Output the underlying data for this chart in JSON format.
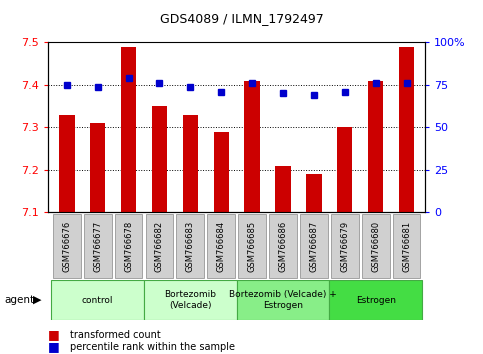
{
  "title": "GDS4089 / ILMN_1792497",
  "samples": [
    "GSM766676",
    "GSM766677",
    "GSM766678",
    "GSM766682",
    "GSM766683",
    "GSM766684",
    "GSM766685",
    "GSM766686",
    "GSM766687",
    "GSM766679",
    "GSM766680",
    "GSM766681"
  ],
  "red_values": [
    7.33,
    7.31,
    7.49,
    7.35,
    7.33,
    7.29,
    7.41,
    7.21,
    7.19,
    7.3,
    7.41,
    7.49
  ],
  "blue_values": [
    75,
    74,
    79,
    76,
    74,
    71,
    76,
    70,
    69,
    71,
    76,
    76
  ],
  "ylim_left": [
    7.1,
    7.5
  ],
  "ylim_right": [
    0,
    100
  ],
  "yticks_left": [
    7.1,
    7.2,
    7.3,
    7.4,
    7.5
  ],
  "yticks_right": [
    0,
    25,
    50,
    75,
    100
  ],
  "ytick_labels_right": [
    "0",
    "25",
    "50",
    "75",
    "100%"
  ],
  "group_configs": [
    {
      "label": "control",
      "indices": [
        0,
        1,
        2
      ],
      "color": "#ccffcc",
      "edgecolor": "#44aa44"
    },
    {
      "label": "Bortezomib\n(Velcade)",
      "indices": [
        3,
        4,
        5
      ],
      "color": "#ccffcc",
      "edgecolor": "#44aa44"
    },
    {
      "label": "Bortezomib (Velcade) +\nEstrogen",
      "indices": [
        6,
        7,
        8
      ],
      "color": "#88ee88",
      "edgecolor": "#44aa44"
    },
    {
      "label": "Estrogen",
      "indices": [
        9,
        10,
        11
      ],
      "color": "#44dd44",
      "edgecolor": "#44aa44"
    }
  ],
  "bar_color": "#cc0000",
  "dot_color": "#0000cc",
  "bar_width": 0.5,
  "tick_box_color": "#d0d0d0",
  "tick_box_edge": "#888888",
  "legend_items": [
    {
      "color": "#cc0000",
      "label": "transformed count"
    },
    {
      "color": "#0000cc",
      "label": "percentile rank within the sample"
    }
  ]
}
